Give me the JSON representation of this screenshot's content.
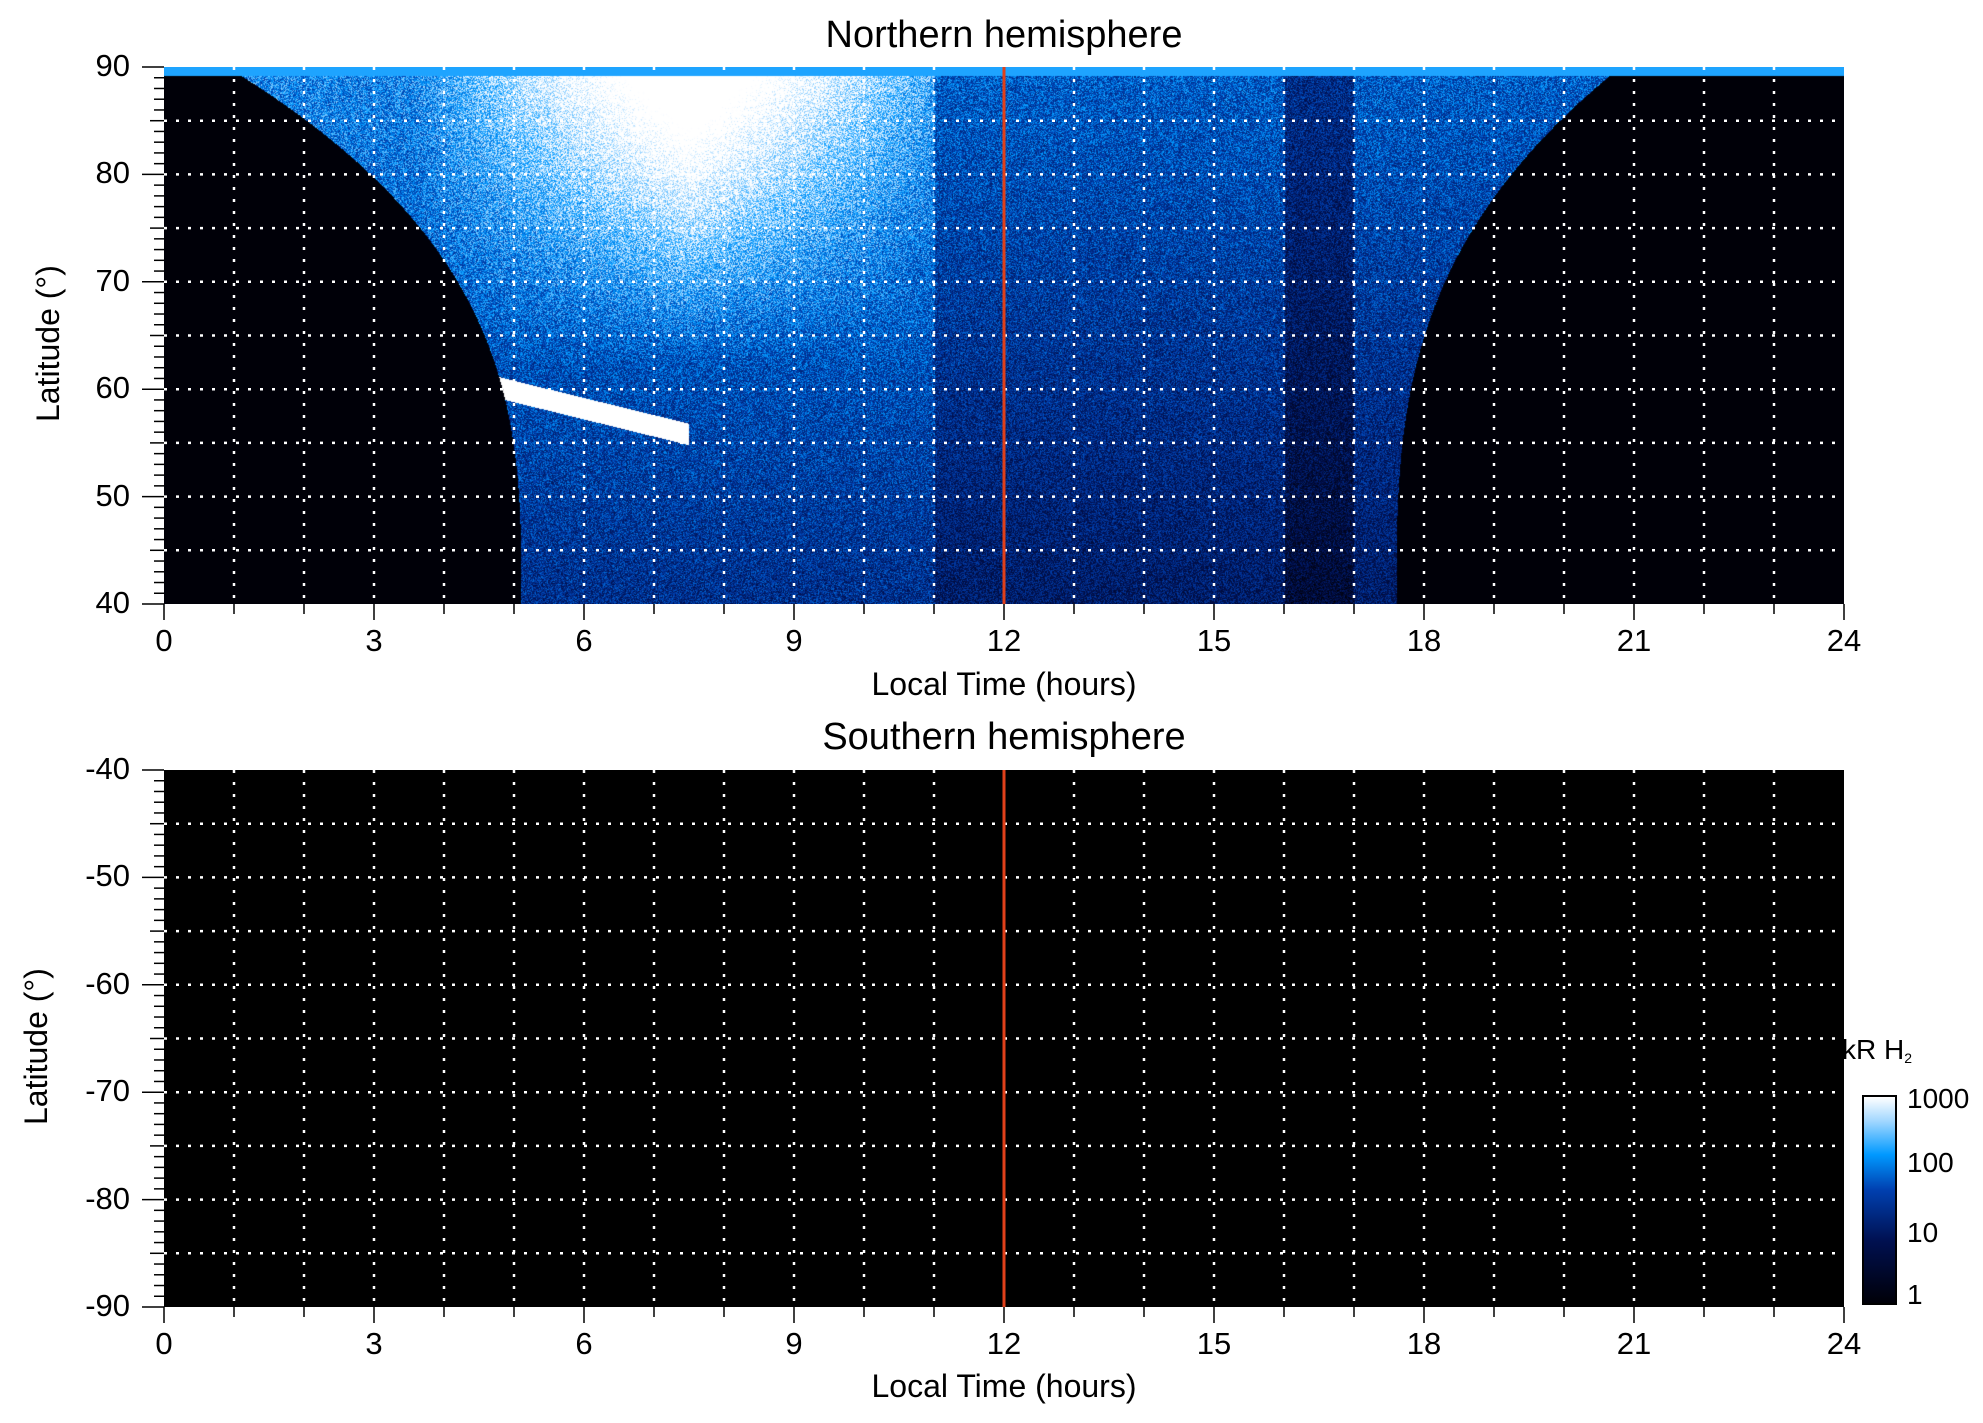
{
  "chart_data": [
    {
      "type": "heatmap",
      "title": "Northern hemisphere",
      "xlabel": "Local Time (hours)",
      "ylabel": "Latitude (°)",
      "xlim": [
        0,
        24
      ],
      "ylim": [
        40,
        90
      ],
      "xticks": [
        "0",
        "3",
        "6",
        "9",
        "12",
        "15",
        "18",
        "21",
        "24"
      ],
      "yticks": [
        "90",
        "80",
        "70",
        "60",
        "50",
        "40"
      ],
      "grid": "dotted, 1 h x 5°",
      "marker_line_x": 12,
      "marker_color": "#e0401a"
    },
    {
      "type": "heatmap",
      "title": "Southern hemisphere",
      "xlabel": "Local Time (hours)",
      "ylabel": "Latitude (°)",
      "xlim": [
        0,
        24
      ],
      "ylim": [
        -90,
        -40
      ],
      "xticks": [
        "0",
        "3",
        "6",
        "9",
        "12",
        "15",
        "18",
        "21",
        "24"
      ],
      "yticks": [
        "-40",
        "-50",
        "-60",
        "-70",
        "-80",
        "-90"
      ],
      "grid": "dotted, 1 h x 5°",
      "marker_line_x": 12,
      "marker_color": "#e0401a"
    }
  ],
  "colorbar": {
    "label": "kR H",
    "label_sub": "2",
    "scale": "log",
    "ticks": [
      "1000",
      "100",
      "10",
      "1"
    ],
    "range": [
      1,
      1000
    ]
  }
}
